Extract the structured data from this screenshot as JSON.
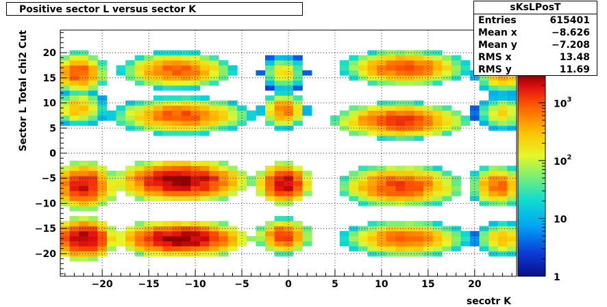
{
  "chart_data": {
    "type": "heatmap",
    "title": "Positive sector L versus sector K",
    "xlabel": "secotr K",
    "ylabel": "Sector L  Total chi2 Cut",
    "xlim": [
      -24.5,
      24.5
    ],
    "ylim": [
      -24.5,
      24.5
    ],
    "x_ticks": [
      "-20",
      "-15",
      "-10",
      "-5",
      "0",
      "5",
      "10",
      "15",
      "20"
    ],
    "y_ticks": [
      "-20",
      "-15",
      "-10",
      "-5",
      "0",
      "5",
      "10",
      "15",
      "20"
    ],
    "z_scale": "log",
    "zlim": [
      1,
      3000
    ],
    "z_ticks": [
      {
        "label": "1",
        "exp": ""
      },
      {
        "label": "10",
        "exp": ""
      },
      {
        "label": "10",
        "exp": "2"
      },
      {
        "label": "10",
        "exp": "3"
      }
    ],
    "grid": true,
    "stats": {
      "name": "sKsLPosT",
      "entries": [
        {
          "label": "Entries",
          "value": "615401"
        },
        {
          "label": "Mean x",
          "value": "−8.626"
        },
        {
          "label": "Mean y",
          "value": "−7.208"
        },
        {
          "label": "RMS x",
          "value": "13.48"
        },
        {
          "label": "RMS y",
          "value": "11.69"
        }
      ]
    },
    "blobs": [
      {
        "cx": -22.5,
        "cy": 16.0,
        "rx": 2.5,
        "ry": 3.5,
        "peak": 1000
      },
      {
        "cx": -12.0,
        "cy": 16.5,
        "rx": 5.0,
        "ry": 3.0,
        "peak": 900
      },
      {
        "cx": -0.5,
        "cy": 16.0,
        "rx": 2.0,
        "ry": 3.0,
        "peak": 200
      },
      {
        "cx": 12.5,
        "cy": 17.0,
        "rx": 5.5,
        "ry": 3.0,
        "peak": 1000
      },
      {
        "cx": 23.0,
        "cy": 15.5,
        "rx": 2.5,
        "ry": 3.0,
        "peak": 400
      },
      {
        "cx": -22.5,
        "cy": 9.0,
        "rx": 2.5,
        "ry": 3.0,
        "peak": 350
      },
      {
        "cx": -11.5,
        "cy": 7.5,
        "rx": 6.0,
        "ry": 3.0,
        "peak": 1000
      },
      {
        "cx": -0.5,
        "cy": 8.5,
        "rx": 2.0,
        "ry": 3.0,
        "peak": 700
      },
      {
        "cx": 12.0,
        "cy": 6.5,
        "rx": 6.0,
        "ry": 3.0,
        "peak": 1300
      },
      {
        "cx": 23.0,
        "cy": 8.0,
        "rx": 2.5,
        "ry": 3.0,
        "peak": 200
      },
      {
        "cx": -22.0,
        "cy": -6.5,
        "rx": 3.0,
        "ry": 4.0,
        "peak": 2000
      },
      {
        "cx": -11.5,
        "cy": -5.5,
        "rx": 6.0,
        "ry": 3.5,
        "peak": 3000
      },
      {
        "cx": -0.5,
        "cy": -6.0,
        "rx": 2.5,
        "ry": 3.5,
        "peak": 2500
      },
      {
        "cx": 12.0,
        "cy": -6.5,
        "rx": 5.5,
        "ry": 3.5,
        "peak": 1200
      },
      {
        "cx": 22.5,
        "cy": -6.5,
        "rx": 2.5,
        "ry": 3.5,
        "peak": 800
      },
      {
        "cx": -22.0,
        "cy": -17.0,
        "rx": 3.0,
        "ry": 3.5,
        "peak": 3000
      },
      {
        "cx": -11.5,
        "cy": -17.0,
        "rx": 6.0,
        "ry": 3.0,
        "peak": 3000
      },
      {
        "cx": -0.5,
        "cy": -16.5,
        "rx": 2.5,
        "ry": 3.0,
        "peak": 1200
      },
      {
        "cx": 12.5,
        "cy": -17.0,
        "rx": 5.5,
        "ry": 3.0,
        "peak": 800
      },
      {
        "cx": 23.0,
        "cy": -17.0,
        "rx": 2.5,
        "ry": 3.0,
        "peak": 300
      }
    ]
  }
}
